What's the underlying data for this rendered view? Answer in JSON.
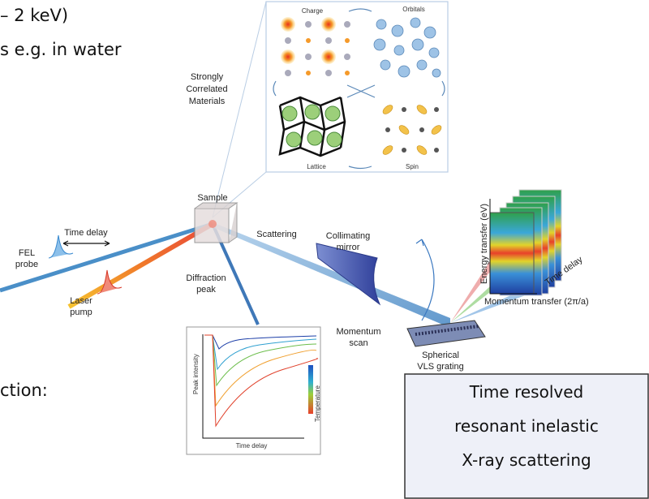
{
  "slide_text": {
    "line1": "– 2 keV)",
    "line2": "s e.g. in water",
    "line3": "ction:"
  },
  "inset": {
    "title_lines": [
      "Strongly",
      "Correlated",
      "Materials"
    ],
    "panels": [
      "Charge",
      "Orbitals",
      "Lattice",
      "Spin"
    ]
  },
  "labels": {
    "sample": "Sample",
    "time_delay": "Time delay",
    "fel_probe": [
      "FEL",
      "probe"
    ],
    "laser_pump": [
      "Laser",
      "pump"
    ],
    "scattering": "Scattering",
    "collimating_mirror": [
      "Collimating",
      "mirror"
    ],
    "diffraction_peak": [
      "Diffraction",
      "peak"
    ],
    "momentum_scan": [
      "Momentum",
      "scan"
    ],
    "grating": [
      "Spherical",
      "VLS grating"
    ]
  },
  "plot": {
    "y_label": "Peak intensity",
    "x_label": "Time delay",
    "colorbar_label": "Temperature"
  },
  "spectra": {
    "y_label": "Energy transfer (eV)",
    "x_label": "Momentum transfer (2π/a)",
    "depth_label": "Time delay"
  },
  "callout": {
    "lines": [
      "Time resolved",
      "resonant inelastic",
      "X-ray scattering"
    ]
  }
}
